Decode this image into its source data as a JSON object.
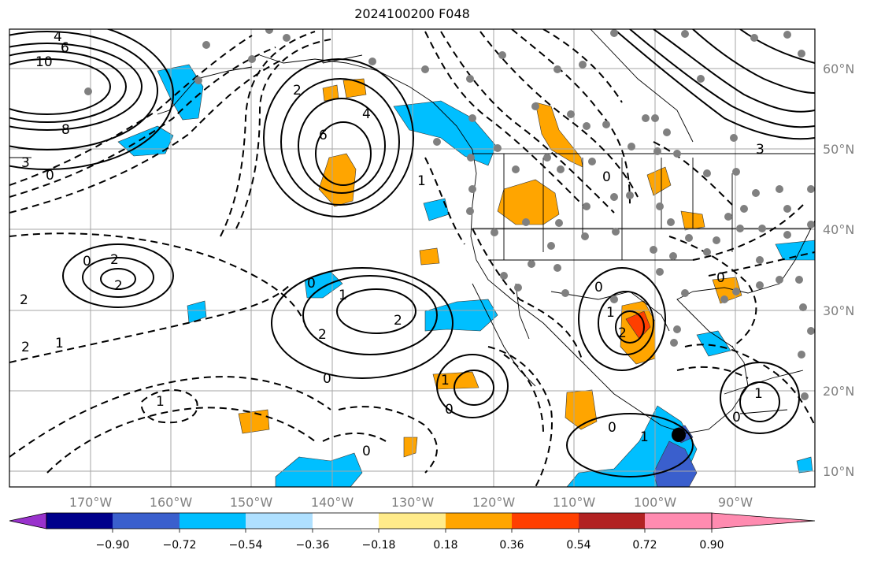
{
  "title": "2024100200 F048",
  "lon_labels": [
    "170°W",
    "160°W",
    "150°W",
    "140°W",
    "130°W",
    "120°W",
    "110°W",
    "100°W",
    "90°W"
  ],
  "lat_labels": [
    "60°N",
    "50°N",
    "40°N",
    "30°N",
    "20°N",
    "10°N"
  ],
  "colorbar": {
    "tick_labels": [
      "−0.90",
      "−0.72",
      "−0.54",
      "−0.36",
      "−0.18",
      "0.18",
      "0.36",
      "0.54",
      "0.72",
      "0.90"
    ],
    "colors": [
      "#9932cc",
      "#00008b",
      "#3a5fcd",
      "#00bfff",
      "#afe0ff",
      "#ffffff",
      "#ffeb8a",
      "#ffa500",
      "#ff3f00",
      "#b22222",
      "#ff8bb0"
    ]
  },
  "contour_labels": [
    {
      "id": "c10",
      "text": "10"
    },
    {
      "id": "c6a",
      "text": "6"
    },
    {
      "id": "c4a",
      "text": "4"
    },
    {
      "id": "c8",
      "text": "8"
    },
    {
      "id": "c3a",
      "text": "3"
    },
    {
      "id": "c0a",
      "text": "0"
    },
    {
      "id": "c2a",
      "text": "2"
    },
    {
      "id": "c4b",
      "text": "4"
    },
    {
      "id": "c6b",
      "text": "6"
    },
    {
      "id": "c1a",
      "text": "1"
    },
    {
      "id": "c2b",
      "text": "2"
    },
    {
      "id": "c0b",
      "text": "0"
    },
    {
      "id": "c2c",
      "text": "2"
    },
    {
      "id": "c2d",
      "text": "2"
    },
    {
      "id": "c1b",
      "text": "1"
    },
    {
      "id": "c2e",
      "text": "2"
    },
    {
      "id": "c0c",
      "text": "0"
    },
    {
      "id": "c2f",
      "text": "2"
    },
    {
      "id": "c0d",
      "text": "0"
    },
    {
      "id": "c1c",
      "text": "1"
    },
    {
      "id": "c2g",
      "text": "2"
    },
    {
      "id": "c0e",
      "text": "0"
    },
    {
      "id": "c1d",
      "text": "1"
    },
    {
      "id": "c0f",
      "text": "0"
    },
    {
      "id": "c3b",
      "text": "3"
    },
    {
      "id": "c0g",
      "text": "0"
    },
    {
      "id": "c1e",
      "text": "1"
    },
    {
      "id": "c0h",
      "text": "0"
    },
    {
      "id": "c0i",
      "text": "0"
    },
    {
      "id": "c1f",
      "text": "1"
    },
    {
      "id": "c0j",
      "text": "0"
    },
    {
      "id": "c1g",
      "text": "1"
    },
    {
      "id": "c2h",
      "text": "2"
    },
    {
      "id": "c1h",
      "text": "1"
    },
    {
      "id": "c0k",
      "text": "0"
    }
  ],
  "legend_markers": {
    "station_dot_color": "#808080",
    "center_marker_color": "#000000"
  }
}
